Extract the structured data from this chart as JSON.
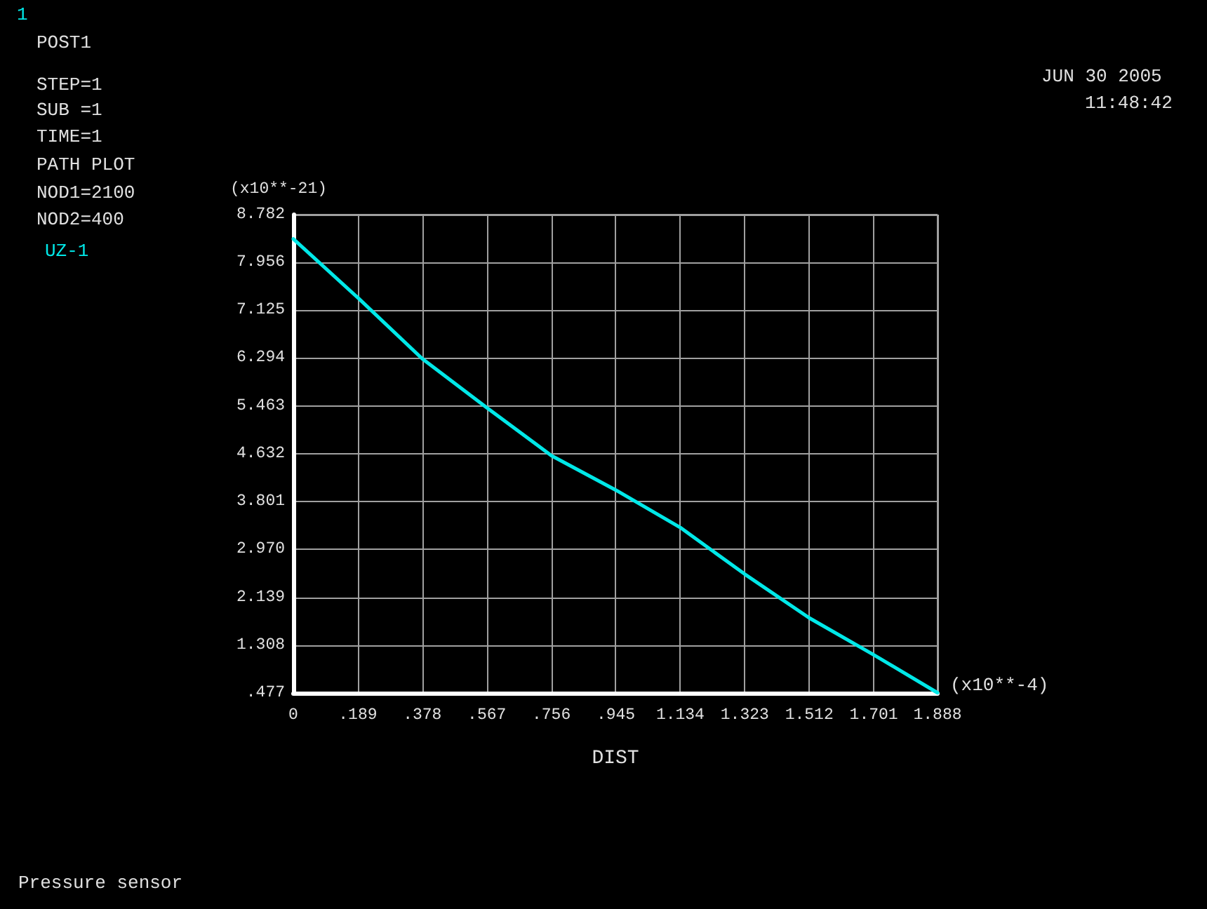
{
  "chart_data": {
    "type": "line",
    "xlabel": "DIST",
    "ylabel": "(x10**-21)",
    "annotations": [
      "1",
      "POST1",
      "STEP=1",
      "SUB =1",
      "TIME=1",
      "PATH PLOT",
      "NOD1=2100",
      "NOD2=400",
      "JUN 30 2005",
      "11:48:42",
      "(x10**-4)",
      "Pressure sensor"
    ],
    "x": [
      0,
      0.189,
      0.378,
      0.567,
      0.756,
      0.945,
      1.134,
      1.323,
      1.512,
      1.701,
      1.888
    ],
    "series": [
      {
        "name": "UZ-1",
        "color": "#00e8e8",
        "values": [
          8.36,
          7.34,
          6.28,
          5.43,
          4.6,
          4.0,
          3.35,
          2.54,
          1.78,
          1.14,
          0.48
        ]
      }
    ],
    "xlim": [
      0,
      1.888
    ],
    "xticks": [
      0,
      {
        "value": 0.189,
        "label": ".189"
      },
      {
        "value": 0.378,
        "label": ".378"
      },
      {
        "value": 0.567,
        "label": ".567"
      },
      {
        "value": 0.756,
        "label": ".756"
      },
      {
        "value": 0.945,
        "label": ".945"
      },
      1.134,
      1.323,
      1.512,
      1.701,
      1.888
    ],
    "ylim": [
      0.477,
      8.782
    ],
    "yticks": [
      {
        "value": 0.477,
        "label": ".477"
      },
      1.308,
      2.139,
      {
        "value": 2.97,
        "label": "2.970"
      },
      3.801,
      4.632,
      5.463,
      6.294,
      7.125,
      7.956,
      8.782
    ],
    "grid": true,
    "legend": "top left",
    "marker": "none",
    "line_style": "solid"
  }
}
